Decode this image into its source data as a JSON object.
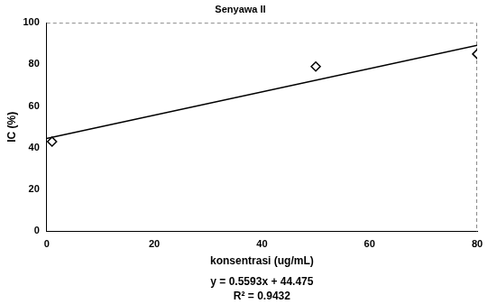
{
  "chart_data": {
    "type": "scatter",
    "title": "Senyawa II",
    "x_label": "konsentrasi (ug/mL)",
    "y_label": "IC (%)",
    "annotations": [
      "y = 0.5593x + 44.475",
      "R² = 0.9432"
    ],
    "series": [
      {
        "type": "scatter",
        "marker": "diamond",
        "color": "#000000",
        "x": [
          1,
          50,
          80
        ],
        "values": [
          43,
          79,
          85
        ]
      },
      {
        "type": "line",
        "line_style": "solid",
        "color": "#000000",
        "x": [
          0,
          80
        ],
        "values": [
          44.5,
          89.2
        ]
      }
    ],
    "xlim": [
      0,
      80
    ],
    "xticks": [
      0,
      20,
      40,
      60,
      80
    ],
    "ylim": [
      0,
      100
    ],
    "yticks": [
      0,
      20,
      40,
      60,
      80,
      100
    ],
    "grid": false,
    "tick_labels": true
  }
}
